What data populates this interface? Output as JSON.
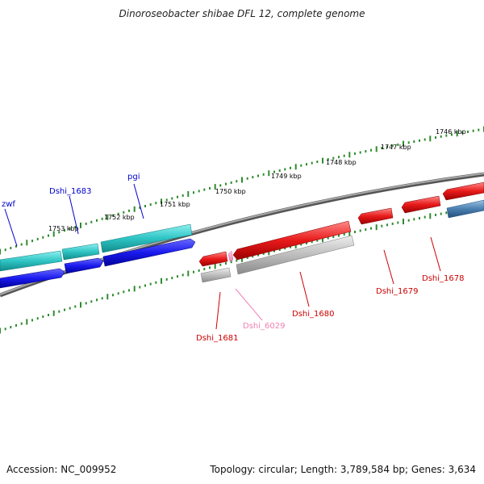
{
  "title": "Dinoroseobacter shibae DFL 12, complete genome",
  "footer": {
    "accession": "Accession: NC_009952",
    "summary": "Topology: circular; Length: 3,789,584 bp; Genes: 3,634"
  },
  "scale_labels": [
    "1746 kbp",
    "1747 kbp",
    "1748 kbp",
    "1749 kbp",
    "1750 kbp",
    "1751 kbp",
    "1752 kbp",
    "1753 kbp"
  ],
  "colors": {
    "backbone": "#7a7a7a",
    "tick": "#2e8b2e",
    "gene_plus": "#2a2aee",
    "cds_plus": "#2ec4c4",
    "gene_minus": "#e01818",
    "cds_minus": "#b8b8b8",
    "cds_minus_blue": "#4a7fb0",
    "label_blue": "#0000cc",
    "label_red": "#cc0000",
    "label_pink": "#f07fb4"
  },
  "gene_labels": [
    {
      "id": "zwf",
      "text": "zwf",
      "color": "blue"
    },
    {
      "id": "dshi_1683",
      "text": "Dshi_1683",
      "color": "blue"
    },
    {
      "id": "pgi",
      "text": "pgi",
      "color": "blue"
    },
    {
      "id": "dshi_1681",
      "text": "Dshi_1681",
      "color": "red"
    },
    {
      "id": "dshi_6029",
      "text": "Dshi_6029",
      "color": "pink"
    },
    {
      "id": "dshi_1680",
      "text": "Dshi_1680",
      "color": "red"
    },
    {
      "id": "dshi_1679",
      "text": "Dshi_1679",
      "color": "red"
    },
    {
      "id": "dshi_1678",
      "text": "Dshi_1678",
      "color": "red"
    }
  ]
}
